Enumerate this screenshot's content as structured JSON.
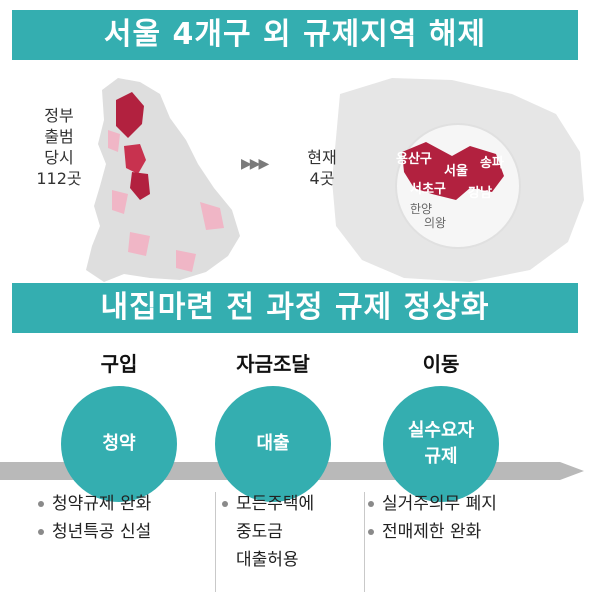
{
  "headline": "서울 4개구 외 규제지역 해제",
  "before": {
    "lines": [
      "정부",
      "출범",
      "당시",
      "112곳"
    ]
  },
  "arrows": "▶▶▶",
  "now": {
    "lines": [
      "현재",
      "4곳"
    ]
  },
  "map_labels": {
    "highlighted": [
      "용산구",
      "서울",
      "송파",
      "서초구",
      "강남"
    ],
    "other": [
      "한양",
      "의왕"
    ]
  },
  "subheadline": "내집마련 전 과정 규제 정상화",
  "stages": [
    {
      "title": "구입",
      "circle": [
        "청약"
      ],
      "bullets": [
        [
          "청약규제 완화"
        ],
        [
          "청년특공 신설"
        ]
      ]
    },
    {
      "title": "자금조달",
      "circle": [
        "대출"
      ],
      "bullets": [
        [
          "모든주택에",
          "중도금",
          "대출허용"
        ]
      ]
    },
    {
      "title": "이동",
      "circle": [
        "실수요자",
        "규제"
      ],
      "bullets": [
        [
          "실거주의무 폐지"
        ],
        [
          "전매제한 완화"
        ]
      ]
    }
  ],
  "colors": {
    "teal": "#34aeb0",
    "highlight": "#b2213f",
    "light_highlight": "#f0b6c6",
    "map_gray": "#dcdcdc"
  }
}
